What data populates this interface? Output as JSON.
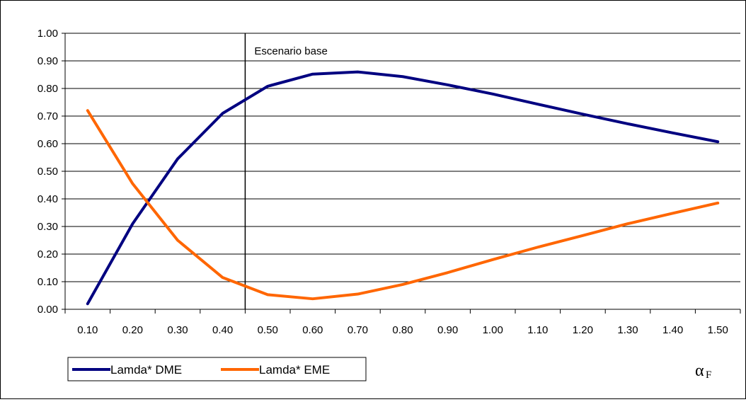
{
  "chart_data": {
    "type": "line",
    "x": [
      "0.10",
      "0.20",
      "0.30",
      "0.40",
      "0.50",
      "0.60",
      "0.70",
      "0.80",
      "0.90",
      "1.00",
      "1.10",
      "1.20",
      "1.30",
      "1.40",
      "1.50"
    ],
    "series": [
      {
        "name": "Lamda* DME",
        "color": "#000080",
        "values": [
          0.02,
          0.31,
          0.545,
          0.71,
          0.808,
          0.852,
          0.86,
          0.843,
          0.813,
          0.78,
          0.743,
          0.707,
          0.672,
          0.639,
          0.607
        ]
      },
      {
        "name": "Lamda* EME",
        "color": "#ff6600",
        "values": [
          0.72,
          0.455,
          0.25,
          0.115,
          0.053,
          0.038,
          0.055,
          0.09,
          0.133,
          0.18,
          0.225,
          0.267,
          0.31,
          0.348,
          0.385
        ]
      }
    ],
    "yticks": [
      "0.00",
      "0.10",
      "0.20",
      "0.30",
      "0.40",
      "0.50",
      "0.60",
      "0.70",
      "0.80",
      "0.90",
      "1.00"
    ],
    "ylim": [
      0,
      1
    ],
    "grid": true,
    "annotation": {
      "label": "Escenario base",
      "x_between": [
        "0.40",
        "0.50"
      ]
    },
    "legend": {
      "placement": "bottom-left",
      "entries": [
        "Lamda* DME",
        "Lamda* EME"
      ]
    },
    "xlabel_symbol": {
      "main": "α",
      "subscript": "F"
    }
  }
}
